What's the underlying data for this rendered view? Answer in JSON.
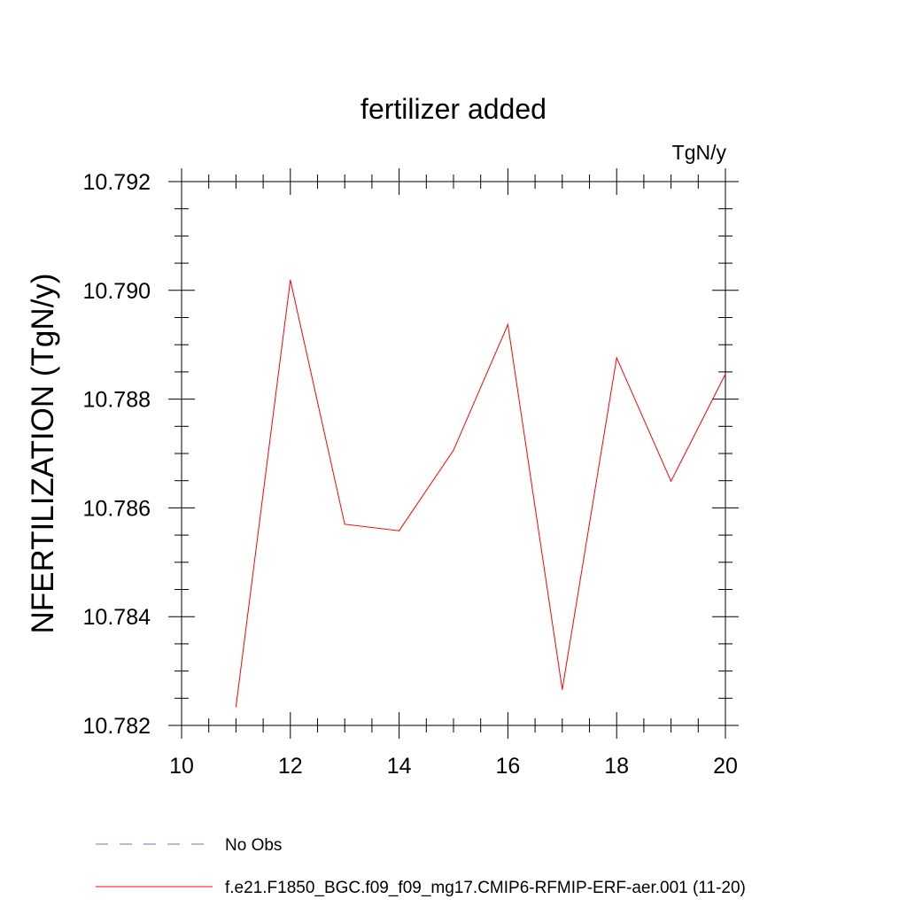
{
  "chart_data": {
    "type": "line",
    "title": "fertilizer added",
    "units_label": "TgN/y",
    "ylabel": "NFERTILIZATION  (TgN/y)",
    "xlabel": "",
    "xlim": [
      10,
      20
    ],
    "ylim": [
      10.782,
      10.792
    ],
    "x_ticks": [
      10,
      12,
      14,
      16,
      18,
      20
    ],
    "x_tick_labels": [
      "10",
      "12",
      "14",
      "16",
      "18",
      "20"
    ],
    "y_ticks": [
      10.782,
      10.784,
      10.786,
      10.788,
      10.79,
      10.792
    ],
    "y_tick_labels": [
      "10.782",
      "10.784",
      "10.786",
      "10.788",
      "10.790",
      "10.792"
    ],
    "grid": false,
    "legend_placement": "bottom-left, below plot",
    "series": [
      {
        "name": "f.e21.F1850_BGC.f09_f09_mg17.CMIP6-RFMIP-ERF-aer.001 (11-20)",
        "color": "#ff0000",
        "x": [
          11,
          12,
          13,
          14,
          15,
          16,
          17,
          18,
          19,
          20
        ],
        "values": [
          10.78234,
          10.79019,
          10.7857,
          10.78558,
          10.78706,
          10.78937,
          10.78266,
          10.78876,
          10.78649,
          10.78846
        ]
      }
    ],
    "legend": [
      {
        "label": "No Obs",
        "color": "#7a6fb3",
        "style": "dashed"
      },
      {
        "label": "f.e21.F1850_BGC.f09_f09_mg17.CMIP6-RFMIP-ERF-aer.001 (11-20)",
        "color": "#ff0000",
        "style": "solid"
      }
    ]
  }
}
